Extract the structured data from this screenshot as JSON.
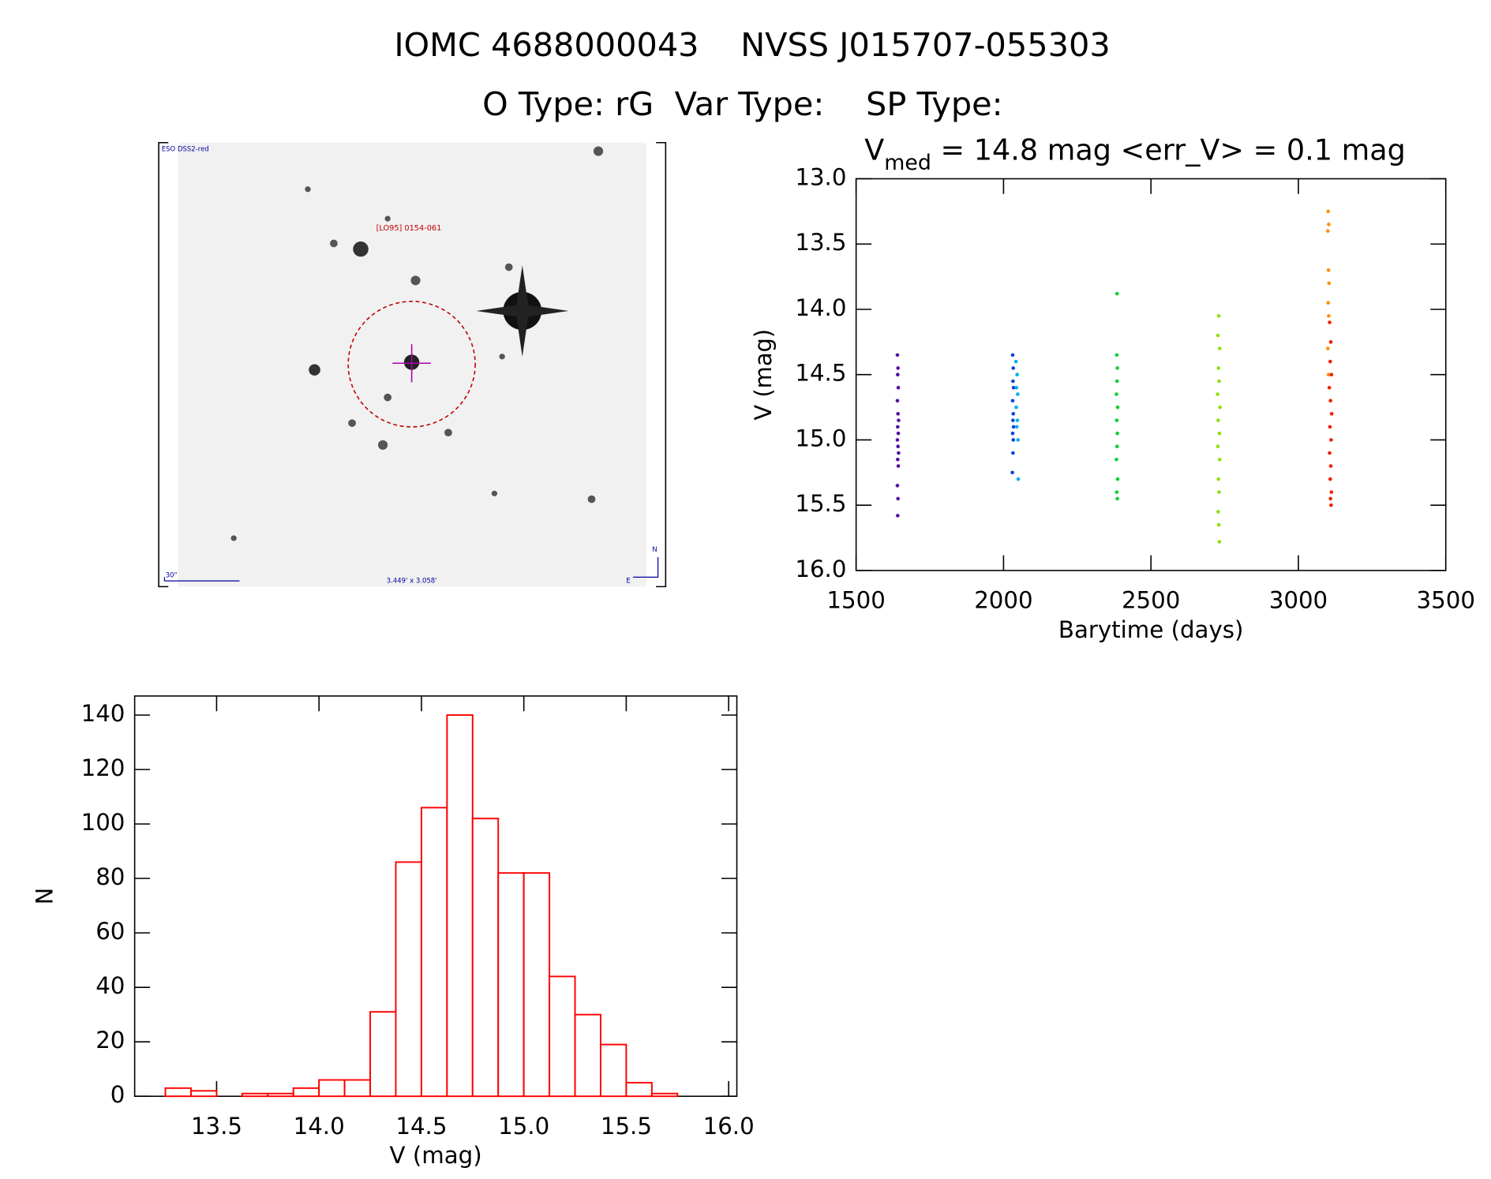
{
  "header": {
    "title": "IOMC 4688000043    NVSS J015707-055303",
    "subtitle": "O Type: rG  Var Type:    SP Type:"
  },
  "image": {
    "survey": "ESO DSS2-red",
    "object": "[LO95] 0154-061",
    "scale": "30\"",
    "size": "3.449' x 3.058'",
    "north": "N",
    "east": "E"
  },
  "chart_data": [
    {
      "type": "scatter",
      "title": {
        "symbol": "V",
        "subscript": "med",
        "text": " = 14.8 mag <err_V> = 0.1 mag"
      },
      "x_label": "Barytime (days)",
      "y_label": "V (mag)",
      "xlim": [
        1500,
        3500
      ],
      "xticks": [
        1500,
        2000,
        2500,
        3000,
        3500
      ],
      "ylim": [
        16,
        13
      ],
      "yticks": [
        {
          "value": 13,
          "label": "13.0"
        },
        {
          "value": 13.5,
          "label": "13.5"
        },
        {
          "value": 14,
          "label": "14.0"
        },
        {
          "value": 14.5,
          "label": "14.5"
        },
        {
          "value": 15,
          "label": "15.0"
        },
        {
          "value": 15.5,
          "label": "15.5"
        },
        {
          "value": 16,
          "label": "16.0"
        }
      ],
      "series": [
        {
          "color": "#5010a0",
          "x": [
            1640,
            1642,
            1641,
            1643,
            1640,
            1642,
            1644,
            1641,
            1643,
            1640,
            1642,
            1644,
            1641,
            1643,
            1640,
            1642,
            1641
          ],
          "values": [
            14.35,
            14.45,
            14.5,
            14.6,
            14.7,
            14.8,
            14.85,
            14.9,
            14.95,
            15.0,
            15.05,
            15.1,
            15.15,
            15.2,
            15.35,
            15.45,
            15.58
          ]
        },
        {
          "color": "#1040e0",
          "x": [
            2031,
            2033,
            2032,
            2034,
            2031,
            2033,
            2032,
            2034,
            2031,
            2033,
            2032,
            2030
          ],
          "values": [
            14.35,
            14.45,
            14.55,
            14.6,
            14.7,
            14.8,
            14.85,
            14.9,
            14.95,
            15.0,
            15.1,
            15.25
          ]
        },
        {
          "color": "#00b0f0",
          "x": [
            2042,
            2046,
            2044,
            2048,
            2043,
            2047,
            2045,
            2049,
            2050
          ],
          "values": [
            14.4,
            14.5,
            14.6,
            14.65,
            14.75,
            14.85,
            14.9,
            15.0,
            15.3
          ]
        },
        {
          "color": "#10d030",
          "x": [
            2385,
            2384,
            2386,
            2385,
            2383,
            2387,
            2384,
            2386,
            2385,
            2383,
            2387,
            2384,
            2386
          ],
          "values": [
            13.88,
            14.35,
            14.45,
            14.55,
            14.65,
            14.75,
            14.85,
            14.95,
            15.05,
            15.15,
            15.3,
            15.4,
            15.45
          ]
        },
        {
          "color": "#90e010",
          "x": [
            2730,
            2727,
            2733,
            2729,
            2731,
            2726,
            2734,
            2728,
            2732,
            2727,
            2733,
            2729,
            2731,
            2728,
            2730,
            2732
          ],
          "values": [
            14.05,
            14.2,
            14.3,
            14.45,
            14.55,
            14.65,
            14.75,
            14.85,
            14.95,
            15.05,
            15.15,
            15.3,
            15.4,
            15.55,
            15.65,
            15.78
          ]
        },
        {
          "color": "#ff9000",
          "x": [
            3101,
            3103,
            3100,
            3102,
            3104,
            3101,
            3103,
            3100,
            3102
          ],
          "values": [
            13.25,
            13.35,
            13.4,
            13.7,
            13.8,
            13.95,
            14.05,
            14.3,
            14.5
          ]
        },
        {
          "color": "#f02000",
          "x": [
            3106,
            3110,
            3108,
            3112,
            3105,
            3109,
            3113,
            3107,
            3111,
            3106,
            3110,
            3108,
            3112,
            3109,
            3111
          ],
          "values": [
            14.1,
            14.25,
            14.4,
            14.5,
            14.6,
            14.7,
            14.8,
            14.9,
            15.0,
            15.1,
            15.2,
            15.3,
            15.4,
            15.45,
            15.5
          ]
        }
      ]
    },
    {
      "type": "histogram",
      "x_label": "V (mag)",
      "y_label": "N",
      "color": "#ff0000",
      "bins": [
        13.25,
        13.375,
        13.5,
        13.625,
        13.75,
        13.875,
        14.0,
        14.125,
        14.25,
        14.375,
        14.5,
        14.625,
        14.75,
        14.875,
        15.0,
        15.125,
        15.25,
        15.375,
        15.5,
        15.625,
        15.75
      ],
      "counts": [
        3,
        2,
        0,
        1,
        1,
        3,
        6,
        6,
        31,
        86,
        106,
        140,
        102,
        82,
        82,
        44,
        30,
        19,
        5,
        1
      ],
      "xlim": [
        13.1,
        16.04
      ],
      "xticks": [
        13.5,
        {
          "value": 14,
          "label": "14.0"
        },
        14.5,
        {
          "value": 15,
          "label": "15.0"
        },
        15.5,
        {
          "value": 16,
          "label": "16.0"
        }
      ],
      "ylim": [
        0,
        147
      ],
      "yticks": [
        0,
        20,
        40,
        60,
        80,
        100,
        120,
        140
      ]
    }
  ]
}
